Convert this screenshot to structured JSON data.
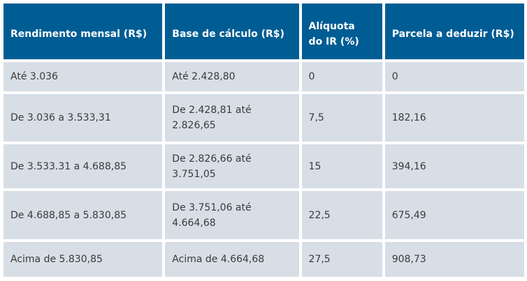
{
  "table": {
    "header": [
      "Rendimento mensal (R$)",
      "Base de cálculo (R$)",
      "Alíquota do IR (%)",
      "Parcela a deduzir (R$)"
    ],
    "rows": [
      [
        "Até 3.036",
        "Até 2.428,80",
        "0",
        "0"
      ],
      [
        "De 3.036 a 3.533,31",
        "De 2.428,81 até 2.826,65",
        "7,5",
        "182,16"
      ],
      [
        "De 3.533.31 a 4.688,85",
        "De 2.826,66 até 3.751,05",
        "15",
        "394,16"
      ],
      [
        "De 4.688,85 a 5.830,85",
        "De 3.751,06 até 4.664,68",
        "22,5",
        "675,49"
      ],
      [
        "Acima de 5.830,85",
        "Acima de 4.664,68",
        "27,5",
        "908,73"
      ]
    ]
  }
}
